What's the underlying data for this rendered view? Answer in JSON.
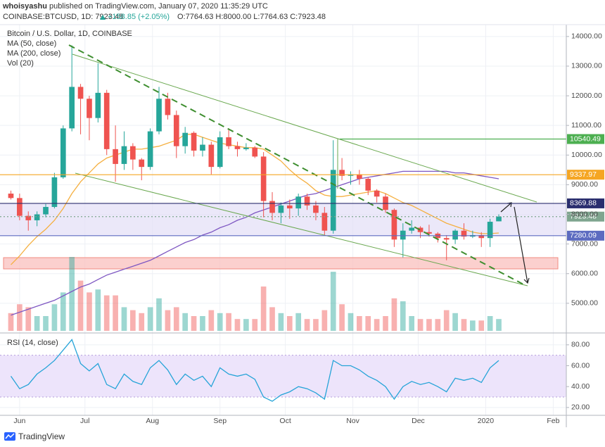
{
  "header": {
    "author": "whoisyashu",
    "published": "published on TradingView.com, January 07, 2020 11:35:29 UTC",
    "symbol": "COINBASE:BTCUSD, 1D:",
    "last": "7923.48",
    "change": "+158.85 (+2.05%)",
    "ohlc": "O:7764.63 H:8000.00 L:7764.63 C:7923.48"
  },
  "chart_data": {
    "type": "candlestick",
    "title": "Bitcoin / U.S. Dollar, 1D, COINBASE",
    "up_color": "#26a69a",
    "down_color": "#ef5350",
    "grid": true,
    "x": [
      "2019-05-28",
      "2019-06-01",
      "2019-06-05",
      "2019-06-09",
      "2019-06-13",
      "2019-06-17",
      "2019-06-21",
      "2019-06-25",
      "2019-06-29",
      "2019-07-03",
      "2019-07-07",
      "2019-07-11",
      "2019-07-15",
      "2019-07-19",
      "2019-07-23",
      "2019-07-27",
      "2019-07-31",
      "2019-08-04",
      "2019-08-08",
      "2019-08-12",
      "2019-08-16",
      "2019-08-20",
      "2019-08-24",
      "2019-08-28",
      "2019-09-01",
      "2019-09-05",
      "2019-09-09",
      "2019-09-13",
      "2019-09-17",
      "2019-09-21",
      "2019-09-25",
      "2019-09-29",
      "2019-10-03",
      "2019-10-07",
      "2019-10-11",
      "2019-10-15",
      "2019-10-19",
      "2019-10-23",
      "2019-10-27",
      "2019-10-31",
      "2019-11-04",
      "2019-11-08",
      "2019-11-12",
      "2019-11-16",
      "2019-11-20",
      "2019-11-24",
      "2019-11-28",
      "2019-12-02",
      "2019-12-06",
      "2019-12-10",
      "2019-12-14",
      "2019-12-18",
      "2019-12-22",
      "2019-12-26",
      "2019-12-30",
      "2020-01-03",
      "2020-01-07"
    ],
    "open": [
      8700,
      8550,
      7950,
      7800,
      8000,
      8250,
      9250,
      10900,
      12300,
      11900,
      11250,
      12100,
      10200,
      9700,
      10300,
      9850,
      9600,
      10800,
      11900,
      11350,
      10300,
      10750,
      10150,
      10350,
      9600,
      10600,
      10300,
      10200,
      10250,
      9950,
      8450,
      8050,
      8300,
      8200,
      8600,
      8300,
      8050,
      7450,
      9500,
      9300,
      9350,
      9200,
      8800,
      8600,
      8150,
      7150,
      7450,
      7550,
      7400,
      7350,
      7200,
      7150,
      7450,
      7250,
      7300,
      7200,
      7764.63
    ],
    "high": [
      8800,
      8700,
      8100,
      8100,
      8350,
      9400,
      11000,
      13700,
      12400,
      12000,
      13100,
      12200,
      11000,
      10800,
      10400,
      9900,
      10900,
      12300,
      12100,
      11500,
      10950,
      10800,
      10600,
      10450,
      10800,
      10900,
      10450,
      10400,
      10300,
      10100,
      8750,
      8400,
      8500,
      8700,
      8700,
      8450,
      8250,
      10500,
      9900,
      9450,
      9500,
      9250,
      8850,
      8700,
      8200,
      7700,
      7800,
      7600,
      7650,
      7400,
      7300,
      7500,
      7700,
      7450,
      7400,
      7850,
      8000
    ],
    "low": [
      8500,
      7800,
      7450,
      7600,
      7900,
      8200,
      9200,
      10800,
      10700,
      10500,
      11100,
      10000,
      9100,
      9500,
      9500,
      9150,
      9500,
      10700,
      11200,
      9900,
      10050,
      9950,
      9950,
      9350,
      9550,
      10200,
      9950,
      10150,
      9900,
      7900,
      7800,
      7700,
      7850,
      7950,
      8150,
      7800,
      7300,
      7350,
      9150,
      9000,
      9000,
      8650,
      8400,
      8050,
      6900,
      6550,
      7350,
      7200,
      7250,
      7050,
      6450,
      7000,
      7150,
      7200,
      6900,
      6900,
      7764.63
    ],
    "close": [
      8550,
      7950,
      7800,
      8000,
      8250,
      9250,
      10900,
      12300,
      11900,
      11250,
      12100,
      10200,
      9700,
      10300,
      9850,
      9600,
      10800,
      11900,
      11350,
      10300,
      10750,
      10150,
      10350,
      9600,
      10600,
      10300,
      10200,
      10250,
      9950,
      8450,
      8050,
      8300,
      8200,
      8600,
      8300,
      8050,
      7450,
      9500,
      9300,
      9350,
      9200,
      8800,
      8600,
      8150,
      7150,
      7450,
      7550,
      7400,
      7350,
      7200,
      7150,
      7450,
      7250,
      7300,
      7200,
      7750,
      7923.48
    ],
    "series": [
      {
        "name": "MA (50, close)",
        "color": "#f5b041",
        "values": [
          6300,
          6600,
          6950,
          7250,
          7500,
          7800,
          8200,
          8700,
          9100,
          9400,
          9700,
          9900,
          10000,
          10100,
          10200,
          10200,
          10250,
          10300,
          10400,
          10500,
          10700,
          10700,
          10600,
          10500,
          10400,
          10350,
          10300,
          10250,
          10250,
          10200,
          10000,
          9800,
          9500,
          9250,
          9050,
          8800,
          8650,
          8600,
          8600,
          8650,
          8700,
          8750,
          8800,
          8700,
          8550,
          8400,
          8300,
          8150,
          8000,
          7850,
          7700,
          7600,
          7500,
          7400,
          7350,
          7350,
          7370
        ]
      },
      {
        "name": "MA (200, close)",
        "color": "#7e57c2",
        "values": [
          4600,
          4700,
          4800,
          4900,
          5000,
          5100,
          5250,
          5400,
          5550,
          5650,
          5800,
          5950,
          6050,
          6150,
          6250,
          6350,
          6450,
          6600,
          6750,
          6900,
          7050,
          7150,
          7300,
          7400,
          7550,
          7650,
          7800,
          7900,
          8050,
          8150,
          8250,
          8350,
          8450,
          8550,
          8650,
          8700,
          8800,
          8900,
          9000,
          9100,
          9200,
          9250,
          9300,
          9350,
          9400,
          9450,
          9450,
          9450,
          9450,
          9450,
          9450,
          9400,
          9400,
          9350,
          9300,
          9250,
          9200
        ]
      }
    ],
    "volume": {
      "name": "Vol (20)",
      "values": [
        60,
        90,
        80,
        50,
        50,
        90,
        130,
        250,
        170,
        130,
        140,
        120,
        120,
        80,
        70,
        60,
        80,
        110,
        70,
        80,
        60,
        50,
        50,
        70,
        60,
        60,
        40,
        40,
        40,
        150,
        80,
        60,
        50,
        60,
        40,
        40,
        70,
        200,
        90,
        60,
        50,
        50,
        40,
        50,
        110,
        100,
        50,
        40,
        40,
        40,
        70,
        60,
        40,
        35,
        35,
        50,
        40
      ]
    },
    "xlim": [
      "2019-05-23",
      "2020-02-07"
    ],
    "xticks": [
      {
        "value": "2019-06-01",
        "label": "Jun"
      },
      {
        "value": "2019-07-01",
        "label": "Jul"
      },
      {
        "value": "2019-08-01",
        "label": "Aug"
      },
      {
        "value": "2019-09-01",
        "label": "Sep"
      },
      {
        "value": "2019-10-01",
        "label": "Oct"
      },
      {
        "value": "2019-11-01",
        "label": "Nov"
      },
      {
        "value": "2019-12-01",
        "label": "Dec"
      },
      {
        "value": "2020-01-01",
        "label": "2020"
      },
      {
        "value": "2020-02-01",
        "label": "Feb"
      }
    ],
    "ylim": [
      4070,
      14400
    ],
    "yticks": [
      {
        "value": 5000,
        "label": "5000.00"
      },
      {
        "value": 6000,
        "label": "6000.00"
      },
      {
        "value": 7000,
        "label": "7000.00"
      },
      {
        "value": 8000,
        "label": "8000.00"
      },
      {
        "value": 9000,
        "label": "9000.00"
      },
      {
        "value": 10000,
        "label": "10000.00"
      },
      {
        "value": 11000,
        "label": "11000.00"
      },
      {
        "value": 12000,
        "label": "12000.00"
      },
      {
        "value": 13000,
        "label": "13000.00"
      },
      {
        "value": 14000,
        "label": "14000.00"
      }
    ],
    "levels": [
      {
        "value": 10540.49,
        "color": "#4caf50",
        "start": "2019-10-26"
      },
      {
        "value": 9337.97,
        "color": "#f5a623"
      },
      {
        "value": 8369.88,
        "color": "#2a2e6e"
      },
      {
        "value": 7923.48,
        "color": "#7fa58f"
      },
      {
        "value": 7280.09,
        "color": "#5c6bc0"
      }
    ],
    "rsi": {
      "title": "RSI (14, close)",
      "color": "#26a4d8",
      "band": [
        30,
        70
      ],
      "values": [
        50,
        38,
        42,
        52,
        58,
        65,
        75,
        85,
        62,
        55,
        62,
        42,
        38,
        52,
        45,
        42,
        58,
        65,
        56,
        42,
        52,
        46,
        50,
        40,
        58,
        52,
        50,
        52,
        47,
        30,
        26,
        32,
        35,
        40,
        38,
        34,
        28,
        65,
        60,
        60,
        56,
        50,
        46,
        40,
        28,
        40,
        45,
        42,
        44,
        40,
        35,
        48,
        46,
        48,
        44,
        58,
        65
      ],
      "ylim": [
        12.5,
        90
      ],
      "yticks": [
        {
          "value": 20,
          "label": "20.00"
        },
        {
          "value": 40,
          "label": "40.00"
        },
        {
          "value": 60,
          "label": "60.00"
        },
        {
          "value": 80,
          "label": "80.00"
        }
      ]
    }
  },
  "footer": {
    "brand": "TradingView"
  }
}
